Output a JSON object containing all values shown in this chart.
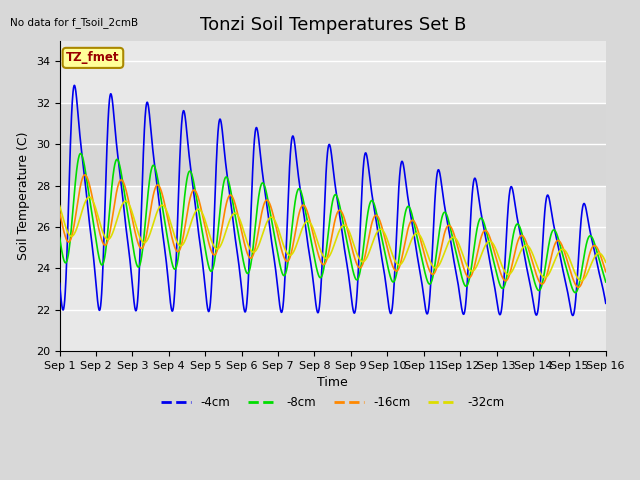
{
  "title": "Tonzi Soil Temperatures Set B",
  "no_data_text": "No data for f_Tsoil_2cmB",
  "annotation_text": "TZ_fmet",
  "xlabel": "Time",
  "ylabel": "Soil Temperature (C)",
  "ylim": [
    20,
    35
  ],
  "yticks": [
    20,
    22,
    24,
    26,
    28,
    30,
    32,
    34
  ],
  "xlim_days": 15,
  "xtick_labels": [
    "Sep 1",
    "Sep 2",
    "Sep 3",
    "Sep 4",
    "Sep 5",
    "Sep 6",
    "Sep 7",
    "Sep 8",
    "Sep 9",
    "Sep 10",
    "Sep 11",
    "Sep 12",
    "Sep 13",
    "Sep 14",
    "Sep 15",
    "Sep 16"
  ],
  "colors": {
    "4cm": "#0000EE",
    "8cm": "#00DD00",
    "16cm": "#FF8800",
    "32cm": "#DDDD00"
  },
  "fig_bg": "#D8D8D8",
  "plot_bg": "#E8E8E8",
  "gray_band": [
    28,
    32
  ],
  "n_days": 15,
  "samples_per_day": 144,
  "title_fontsize": 13,
  "label_fontsize": 9,
  "tick_fontsize": 8
}
